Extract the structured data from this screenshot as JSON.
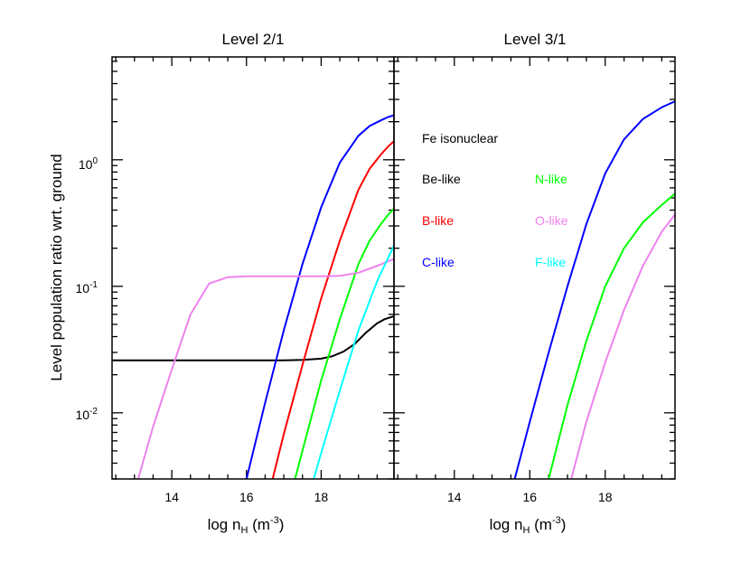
{
  "chart_data": [
    {
      "type": "line",
      "title": "Level 2/1",
      "xlabel": "log n_H (m^-3)",
      "xlabel_parts": {
        "main": "log n",
        "sub": "H",
        "open": " (m",
        "sup": "-3",
        "close": ")"
      },
      "ylabel": "Level population ratio wrt. ground",
      "yscale": "log",
      "xlim": [
        12.4,
        19.95
      ],
      "ylim": [
        0.003,
        6.5
      ],
      "x_ticks": [
        14,
        16,
        18
      ],
      "y_ticks": [
        0.01,
        0.1,
        1
      ],
      "y_tick_labels": [
        {
          "value": 0.01,
          "base": "10",
          "exp": "-2"
        },
        {
          "value": 0.1,
          "base": "10",
          "exp": "-1"
        },
        {
          "value": 1,
          "base": "10",
          "exp": "0"
        }
      ],
      "series": [
        {
          "name": "Be-like",
          "color": "#000000",
          "x": [
            12.4,
            13.0,
            14.0,
            15.0,
            16.0,
            17.0,
            17.5,
            18.0,
            18.3,
            18.6,
            18.9,
            19.2,
            19.5,
            19.7,
            19.95
          ],
          "y": [
            0.026,
            0.026,
            0.026,
            0.026,
            0.026,
            0.026,
            0.0262,
            0.0268,
            0.028,
            0.0305,
            0.035,
            0.043,
            0.051,
            0.055,
            0.058
          ]
        },
        {
          "name": "B-like",
          "color": "#ff0000",
          "x": [
            16.7,
            17.0,
            17.5,
            18.0,
            18.5,
            19.0,
            19.3,
            19.6,
            19.8,
            19.95
          ],
          "y": [
            0.003,
            0.0068,
            0.024,
            0.08,
            0.23,
            0.58,
            0.85,
            1.1,
            1.28,
            1.4
          ]
        },
        {
          "name": "C-like",
          "color": "#0000ff",
          "x": [
            16.0,
            16.5,
            17.0,
            17.5,
            18.0,
            18.5,
            19.0,
            19.3,
            19.6,
            19.8,
            19.95
          ],
          "y": [
            0.003,
            0.012,
            0.045,
            0.15,
            0.42,
            0.95,
            1.55,
            1.85,
            2.05,
            2.18,
            2.25
          ]
        },
        {
          "name": "N-like",
          "color": "#00ff00",
          "x": [
            17.3,
            17.6,
            18.0,
            18.5,
            19.0,
            19.3,
            19.6,
            19.8,
            19.95
          ],
          "y": [
            0.003,
            0.0065,
            0.018,
            0.055,
            0.15,
            0.23,
            0.31,
            0.37,
            0.41
          ]
        },
        {
          "name": "O-like",
          "color": "#ee82ee",
          "x": [
            13.1,
            13.5,
            14.0,
            14.5,
            15.0,
            15.5,
            16.0,
            17.0,
            18.0,
            18.5,
            19.0,
            19.5,
            19.95
          ],
          "y": [
            0.003,
            0.0078,
            0.022,
            0.06,
            0.105,
            0.118,
            0.12,
            0.12,
            0.12,
            0.121,
            0.128,
            0.145,
            0.165
          ]
        },
        {
          "name": "F-like",
          "color": "#00ffff",
          "x": [
            17.8,
            18.0,
            18.5,
            19.0,
            19.5,
            19.95
          ],
          "y": [
            0.003,
            0.0048,
            0.015,
            0.045,
            0.11,
            0.21
          ]
        }
      ]
    },
    {
      "type": "line",
      "title": "Level 3/1",
      "xlabel": "log n_H (m^-3)",
      "xlabel_parts": {
        "main": "log n",
        "sub": "H",
        "open": " (m",
        "sup": "-3",
        "close": ")"
      },
      "yscale": "log",
      "xlim": [
        12.4,
        19.85
      ],
      "ylim": [
        0.003,
        6.5
      ],
      "x_ticks": [
        14,
        16,
        18
      ],
      "series": [
        {
          "name": "C-like",
          "color": "#0000ff",
          "x": [
            15.6,
            16.0,
            16.5,
            17.0,
            17.5,
            18.0,
            18.5,
            19.0,
            19.5,
            19.85
          ],
          "y": [
            0.003,
            0.0085,
            0.03,
            0.1,
            0.31,
            0.78,
            1.45,
            2.1,
            2.6,
            2.9
          ]
        },
        {
          "name": "N-like",
          "color": "#00ff00",
          "x": [
            16.5,
            17.0,
            17.5,
            18.0,
            18.5,
            19.0,
            19.5,
            19.85
          ],
          "y": [
            0.003,
            0.0115,
            0.037,
            0.1,
            0.2,
            0.32,
            0.44,
            0.54
          ]
        },
        {
          "name": "O-like",
          "color": "#ee82ee",
          "x": [
            17.1,
            17.5,
            18.0,
            18.5,
            19.0,
            19.5,
            19.85
          ],
          "y": [
            0.003,
            0.0085,
            0.025,
            0.065,
            0.145,
            0.27,
            0.37
          ]
        }
      ]
    }
  ],
  "legend": {
    "heading": "Fe isonuclear",
    "items": [
      {
        "label": "Be-like",
        "color": "#000000",
        "col": 0,
        "row": 0
      },
      {
        "label": "B-like",
        "color": "#ff0000",
        "col": 0,
        "row": 1
      },
      {
        "label": "C-like",
        "color": "#0000ff",
        "col": 0,
        "row": 2
      },
      {
        "label": "N-like",
        "color": "#00ff00",
        "col": 1,
        "row": 0
      },
      {
        "label": "O-like",
        "color": "#ee82ee",
        "col": 1,
        "row": 1
      },
      {
        "label": "F-like",
        "color": "#00ffff",
        "col": 1,
        "row": 2
      }
    ]
  }
}
